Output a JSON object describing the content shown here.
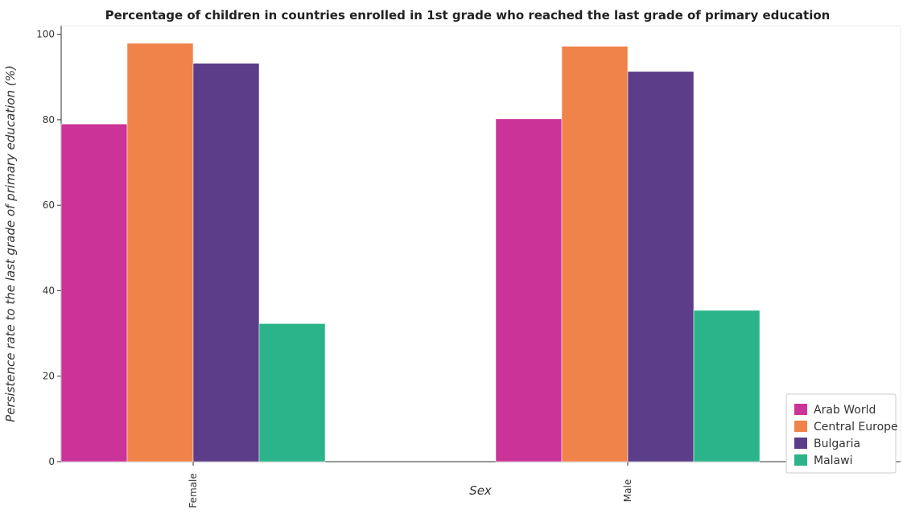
{
  "chart_data": {
    "type": "bar",
    "title": "Percentage of children in countries enrolled in 1st grade who reached the last grade of primary education",
    "xlabel": "Sex",
    "ylabel": "Persistence rate to the last grade of primary education (%)",
    "categories": [
      "Female",
      "Male"
    ],
    "series": [
      {
        "name": "Arab World",
        "color": "#cc3399",
        "values": [
          79.0,
          80.2
        ]
      },
      {
        "name": "Central Europe",
        "color": "#f0834a",
        "values": [
          97.9,
          97.2
        ]
      },
      {
        "name": "Bulgaria",
        "color": "#5b3d8a",
        "values": [
          93.2,
          91.3
        ]
      },
      {
        "name": "Malawi",
        "color": "#2bb48a",
        "values": [
          32.3,
          35.4
        ]
      }
    ],
    "ylim": [
      0,
      102
    ],
    "yticks": [
      0,
      20,
      40,
      60,
      80,
      100
    ],
    "grid": false,
    "legend_position": "bottom-right"
  }
}
